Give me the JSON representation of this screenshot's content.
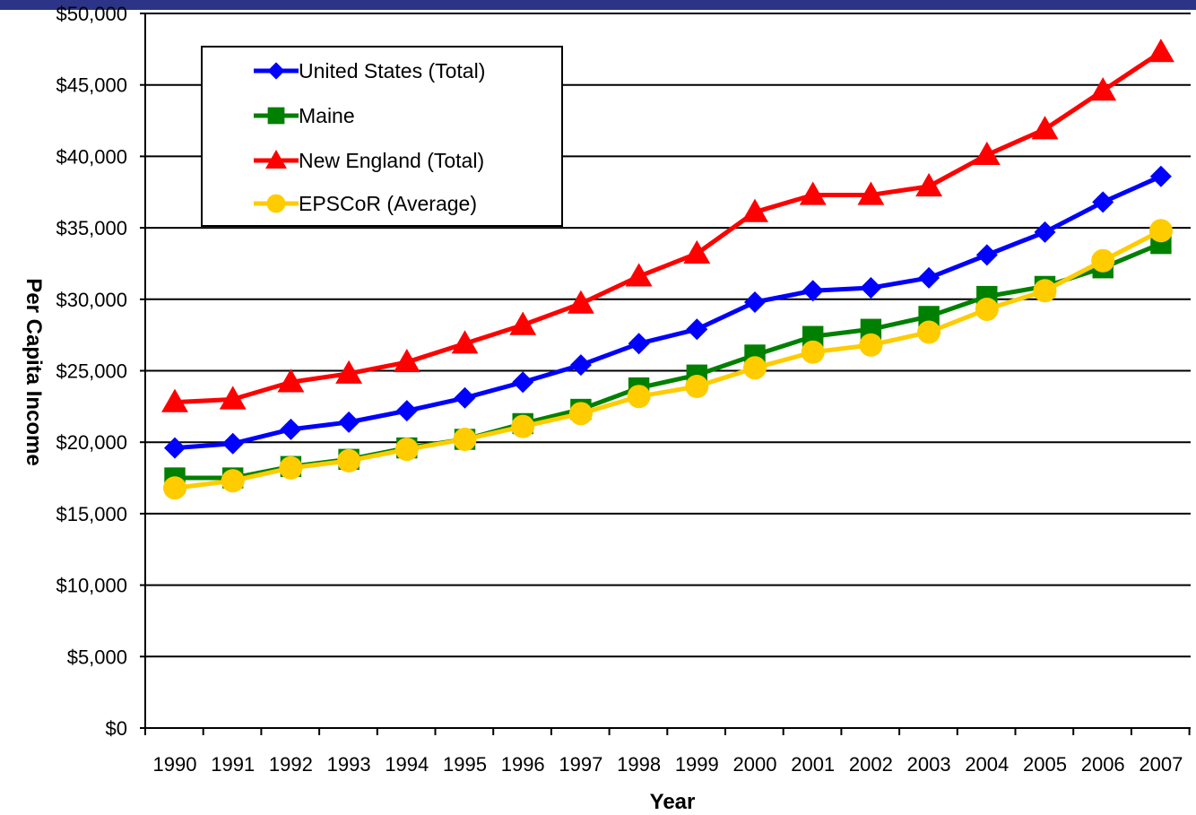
{
  "chart_data": {
    "type": "line",
    "title": "",
    "xlabel": "Year",
    "ylabel": "Per Capita Income",
    "ylim": [
      0,
      50000
    ],
    "ytick_step": 5000,
    "ytick_labels": [
      "$0",
      "$5,000",
      "$10,000",
      "$15,000",
      "$20,000",
      "$25,000",
      "$30,000",
      "$35,000",
      "$40,000",
      "$45,000",
      "$50,000"
    ],
    "x": [
      "1990",
      "1991",
      "1992",
      "1993",
      "1994",
      "1995",
      "1996",
      "1997",
      "1998",
      "1999",
      "2000",
      "2001",
      "2002",
      "2003",
      "2004",
      "2005",
      "2006",
      "2007"
    ],
    "grid": true,
    "legend_placement": "top-left",
    "series": [
      {
        "name": "United States (Total)",
        "color": "#0000ff",
        "marker": "diamond",
        "values": [
          19600,
          19900,
          20900,
          21400,
          22200,
          23100,
          24200,
          25400,
          26900,
          27900,
          29800,
          30600,
          30800,
          31500,
          33100,
          34700,
          36800,
          38600
        ]
      },
      {
        "name": "Maine",
        "color": "#008000",
        "marker": "square",
        "values": [
          17500,
          17500,
          18300,
          18800,
          19600,
          20200,
          21300,
          22300,
          23800,
          24700,
          26100,
          27400,
          27900,
          28800,
          30200,
          30900,
          32200,
          33900
        ]
      },
      {
        "name": "New England (Total)",
        "color": "#ff0000",
        "marker": "triangle",
        "values": [
          22800,
          23000,
          24200,
          24800,
          25600,
          26900,
          28200,
          29700,
          31600,
          33200,
          36100,
          37300,
          37300,
          37900,
          40100,
          41900,
          44600,
          47300
        ]
      },
      {
        "name": "EPSCoR (Average)",
        "color": "#ffcc00",
        "marker": "circle",
        "values": [
          16800,
          17300,
          18200,
          18700,
          19500,
          20200,
          21100,
          22000,
          23200,
          23900,
          25200,
          26300,
          26800,
          27700,
          29300,
          30600,
          32700,
          34800
        ]
      }
    ]
  }
}
